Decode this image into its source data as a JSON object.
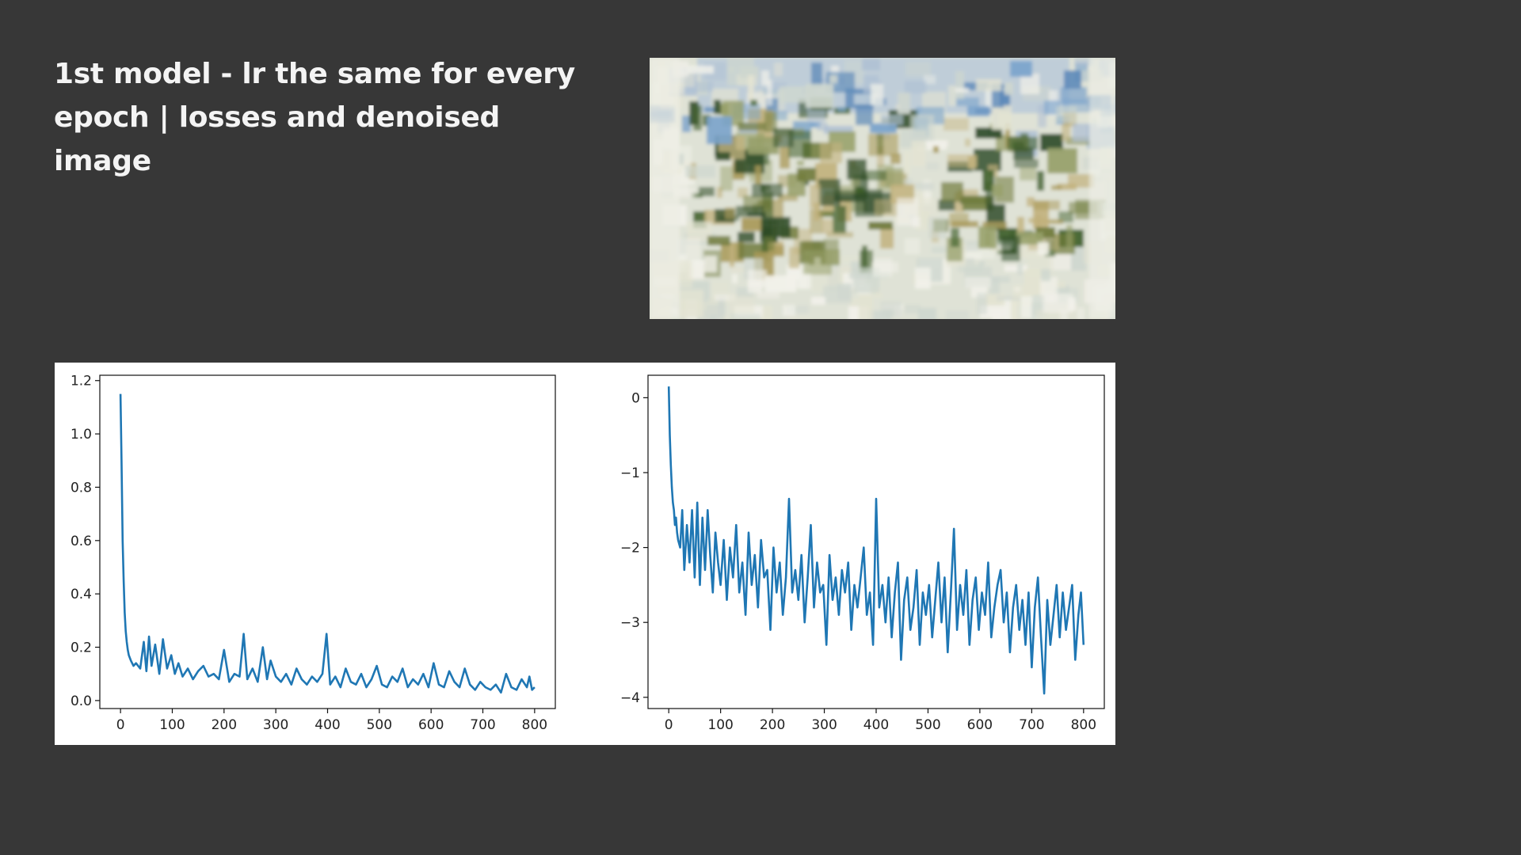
{
  "slide": {
    "title_lines": [
      "1st model - lr the same for every",
      "epoch | losses and denoised",
      "image"
    ]
  },
  "denoised_image": {
    "palette": [
      "#f2f1ea",
      "#e3e3d2",
      "#cfd7cf",
      "#aebfd3",
      "#7aa3cb",
      "#5b88b8",
      "#c2b27e",
      "#a99a5a",
      "#6f7a3a",
      "#3f5f2a",
      "#2d4a26",
      "#97a06a"
    ]
  },
  "chart_data": [
    {
      "type": "line",
      "title": "",
      "xlabel": "",
      "ylabel": "",
      "xlim": [
        -40,
        840
      ],
      "ylim": [
        -0.03,
        1.22
      ],
      "xticks": [
        0,
        100,
        200,
        300,
        400,
        500,
        600,
        700,
        800
      ],
      "xtick_labels": [
        "0",
        "100",
        "200",
        "300",
        "400",
        "500",
        "600",
        "700",
        "800"
      ],
      "yticks": [
        0.0,
        0.2,
        0.4,
        0.6,
        0.8,
        1.0,
        1.2
      ],
      "ytick_labels": [
        "0.0",
        "0.2",
        "0.4",
        "0.6",
        "0.8",
        "1.0",
        "1.2"
      ],
      "grid": false,
      "legend": "none",
      "color": "#1f77b4",
      "series": [
        {
          "x": [
            0,
            2,
            4,
            6,
            8,
            10,
            12,
            14,
            16,
            18,
            20,
            25,
            30,
            38,
            45,
            50,
            55,
            60,
            67,
            75,
            82,
            90,
            98,
            105,
            112,
            120,
            130,
            140,
            150,
            160,
            170,
            180,
            190,
            200,
            210,
            220,
            230,
            238,
            245,
            255,
            265,
            275,
            283,
            290,
            300,
            310,
            320,
            330,
            340,
            350,
            360,
            370,
            380,
            390,
            398,
            405,
            415,
            425,
            435,
            445,
            455,
            465,
            475,
            485,
            495,
            505,
            515,
            525,
            535,
            545,
            555,
            565,
            575,
            585,
            595,
            605,
            615,
            625,
            635,
            645,
            655,
            665,
            675,
            685,
            695,
            705,
            715,
            725,
            735,
            745,
            755,
            765,
            775,
            785,
            790,
            795,
            800
          ],
          "y": [
            1.15,
            0.9,
            0.6,
            0.45,
            0.33,
            0.26,
            0.22,
            0.19,
            0.17,
            0.16,
            0.15,
            0.13,
            0.14,
            0.12,
            0.22,
            0.11,
            0.24,
            0.13,
            0.21,
            0.1,
            0.23,
            0.12,
            0.17,
            0.1,
            0.14,
            0.09,
            0.12,
            0.08,
            0.11,
            0.13,
            0.09,
            0.1,
            0.08,
            0.19,
            0.07,
            0.1,
            0.09,
            0.25,
            0.08,
            0.12,
            0.07,
            0.2,
            0.08,
            0.15,
            0.09,
            0.07,
            0.1,
            0.06,
            0.12,
            0.08,
            0.06,
            0.09,
            0.07,
            0.1,
            0.25,
            0.06,
            0.09,
            0.05,
            0.12,
            0.07,
            0.06,
            0.1,
            0.05,
            0.08,
            0.13,
            0.06,
            0.05,
            0.09,
            0.07,
            0.12,
            0.05,
            0.08,
            0.06,
            0.1,
            0.05,
            0.14,
            0.06,
            0.05,
            0.11,
            0.07,
            0.05,
            0.12,
            0.06,
            0.04,
            0.07,
            0.05,
            0.04,
            0.06,
            0.03,
            0.1,
            0.05,
            0.04,
            0.08,
            0.05,
            0.09,
            0.04,
            0.05
          ]
        }
      ]
    },
    {
      "type": "line",
      "title": "",
      "xlabel": "",
      "ylabel": "",
      "xlim": [
        -40,
        840
      ],
      "ylim": [
        -4.15,
        0.3
      ],
      "xticks": [
        0,
        100,
        200,
        300,
        400,
        500,
        600,
        700,
        800
      ],
      "xtick_labels": [
        "0",
        "100",
        "200",
        "300",
        "400",
        "500",
        "600",
        "700",
        "800"
      ],
      "yticks": [
        0,
        -1,
        -2,
        -3,
        -4
      ],
      "ytick_labels": [
        "0",
        "−1",
        "−2",
        "−3",
        "−4"
      ],
      "grid": false,
      "legend": "none",
      "color": "#1f77b4",
      "series": [
        {
          "x": [
            0,
            2,
            4,
            6,
            8,
            10,
            12,
            14,
            16,
            18,
            22,
            26,
            30,
            35,
            40,
            45,
            50,
            55,
            60,
            65,
            70,
            75,
            80,
            85,
            90,
            95,
            100,
            106,
            112,
            118,
            124,
            130,
            136,
            142,
            148,
            154,
            160,
            166,
            172,
            178,
            184,
            190,
            196,
            202,
            208,
            214,
            220,
            226,
            232,
            238,
            244,
            250,
            256,
            262,
            268,
            274,
            280,
            286,
            292,
            298,
            304,
            310,
            316,
            322,
            328,
            334,
            340,
            346,
            352,
            358,
            364,
            370,
            376,
            382,
            388,
            394,
            400,
            406,
            412,
            418,
            424,
            430,
            436,
            442,
            448,
            454,
            460,
            466,
            472,
            478,
            484,
            490,
            496,
            502,
            508,
            514,
            520,
            526,
            532,
            538,
            544,
            550,
            556,
            562,
            568,
            574,
            580,
            586,
            592,
            598,
            604,
            610,
            616,
            622,
            628,
            634,
            640,
            646,
            652,
            658,
            664,
            670,
            676,
            682,
            688,
            694,
            700,
            706,
            712,
            718,
            724,
            730,
            736,
            742,
            748,
            754,
            760,
            766,
            772,
            778,
            784,
            790,
            795,
            800
          ],
          "y": [
            0.15,
            -0.5,
            -0.9,
            -1.2,
            -1.4,
            -1.5,
            -1.7,
            -1.6,
            -1.8,
            -1.9,
            -2.0,
            -1.5,
            -2.3,
            -1.7,
            -2.2,
            -1.5,
            -2.4,
            -1.4,
            -2.5,
            -1.6,
            -2.3,
            -1.5,
            -2.1,
            -2.6,
            -1.8,
            -2.2,
            -2.5,
            -1.9,
            -2.7,
            -2.0,
            -2.4,
            -1.7,
            -2.6,
            -2.2,
            -2.9,
            -1.8,
            -2.5,
            -2.1,
            -2.8,
            -1.9,
            -2.4,
            -2.3,
            -3.1,
            -2.0,
            -2.6,
            -2.2,
            -2.9,
            -2.4,
            -1.35,
            -2.6,
            -2.3,
            -2.7,
            -2.1,
            -3.0,
            -2.4,
            -1.7,
            -2.8,
            -2.2,
            -2.6,
            -2.5,
            -3.3,
            -2.1,
            -2.7,
            -2.4,
            -2.9,
            -2.3,
            -2.6,
            -2.2,
            -3.1,
            -2.5,
            -2.8,
            -2.4,
            -2.0,
            -2.9,
            -2.6,
            -3.3,
            -1.35,
            -2.8,
            -2.5,
            -3.0,
            -2.4,
            -3.2,
            -2.6,
            -2.2,
            -3.5,
            -2.7,
            -2.4,
            -3.1,
            -2.8,
            -2.3,
            -3.3,
            -2.6,
            -2.9,
            -2.5,
            -3.2,
            -2.7,
            -2.2,
            -3.0,
            -2.4,
            -3.4,
            -2.6,
            -1.75,
            -3.1,
            -2.5,
            -2.9,
            -2.3,
            -3.3,
            -2.7,
            -2.4,
            -3.1,
            -2.6,
            -2.9,
            -2.2,
            -3.2,
            -2.8,
            -2.5,
            -2.3,
            -3.0,
            -2.6,
            -3.4,
            -2.8,
            -2.5,
            -3.1,
            -2.7,
            -3.3,
            -2.6,
            -3.6,
            -2.8,
            -2.4,
            -3.2,
            -3.95,
            -2.7,
            -3.3,
            -2.9,
            -2.5,
            -3.2,
            -2.6,
            -3.1,
            -2.8,
            -2.5,
            -3.5,
            -2.9,
            -2.6,
            -3.3
          ]
        }
      ]
    }
  ]
}
